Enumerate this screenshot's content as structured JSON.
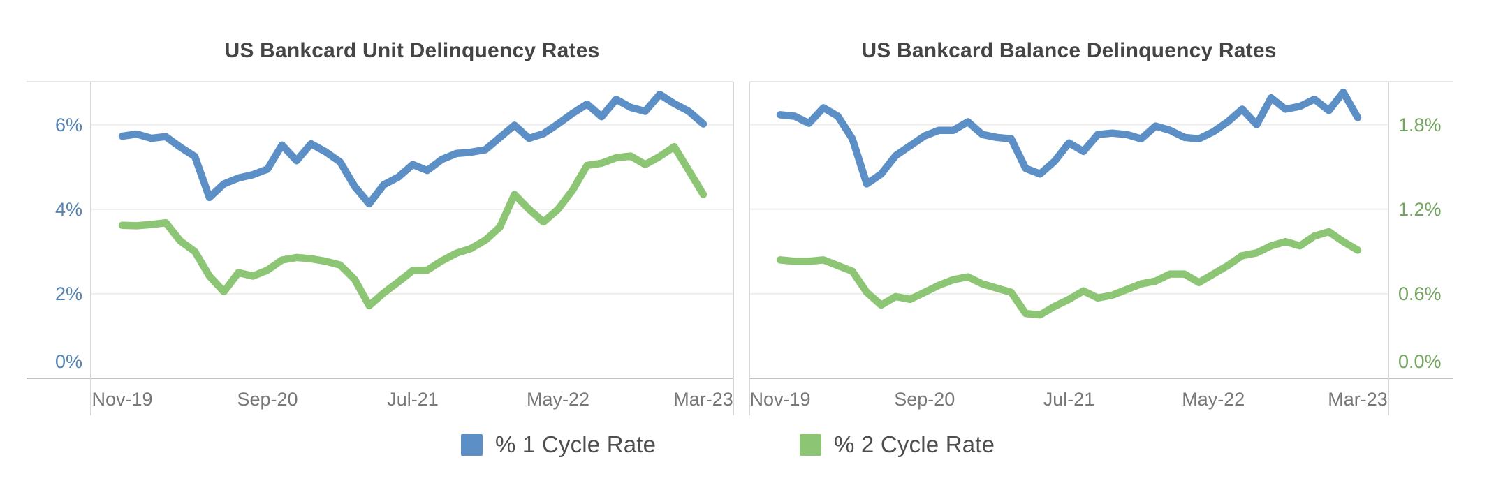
{
  "chart_data": [
    {
      "type": "line",
      "title": "US Bankcard Unit Delinquency Rates",
      "xlabel": "",
      "ylabel": "",
      "ylim": [
        0,
        7.02
      ],
      "grid": true,
      "legend_position": "bottom-shared",
      "axis_color": "#5584B4",
      "y_axis_side": "left",
      "y_ticks": [
        {
          "value": 0,
          "label": "0%"
        },
        {
          "value": 2,
          "label": "2%"
        },
        {
          "value": 4,
          "label": "4%"
        },
        {
          "value": 6,
          "label": "6%"
        }
      ],
      "x_ticks": [
        {
          "index": 0,
          "label": "Nov-19"
        },
        {
          "index": 10,
          "label": "Sep-20"
        },
        {
          "index": 20,
          "label": "Jul-21"
        },
        {
          "index": 30,
          "label": "May-22"
        },
        {
          "index": 40,
          "label": "Mar-23"
        }
      ],
      "categories": [
        "Nov-19",
        "Dec-19",
        "Jan-20",
        "Feb-20",
        "Mar-20",
        "Apr-20",
        "May-20",
        "Jun-20",
        "Jul-20",
        "Aug-20",
        "Sep-20",
        "Oct-20",
        "Nov-20",
        "Dec-20",
        "Jan-21",
        "Feb-21",
        "Mar-21",
        "Apr-21",
        "May-21",
        "Jun-21",
        "Jul-21",
        "Aug-21",
        "Sep-21",
        "Oct-21",
        "Nov-21",
        "Dec-21",
        "Jan-22",
        "Feb-22",
        "Mar-22",
        "Apr-22",
        "May-22",
        "Jun-22",
        "Jul-22",
        "Aug-22",
        "Sep-22",
        "Oct-22",
        "Nov-22",
        "Dec-22",
        "Jan-23",
        "Feb-23",
        "Mar-23"
      ],
      "series": [
        {
          "name": "% 1 Cycle Rate",
          "color": "#5B8FC5",
          "values": [
            5.73,
            5.78,
            5.68,
            5.72,
            5.47,
            5.25,
            4.28,
            4.6,
            4.74,
            4.82,
            4.95,
            5.52,
            5.15,
            5.55,
            5.36,
            5.12,
            4.54,
            4.13,
            4.58,
            4.76,
            5.06,
            4.92,
            5.18,
            5.32,
            5.35,
            5.41,
            5.7,
            5.99,
            5.68,
            5.79,
            6.02,
            6.27,
            6.49,
            6.19,
            6.6,
            6.41,
            6.32,
            6.72,
            6.5,
            6.32,
            6.02
          ]
        },
        {
          "name": "% 2 Cycle Rate",
          "color": "#8CC674",
          "values": [
            3.62,
            3.61,
            3.64,
            3.68,
            3.25,
            3.0,
            2.42,
            2.05,
            2.5,
            2.42,
            2.56,
            2.8,
            2.86,
            2.83,
            2.77,
            2.68,
            2.34,
            1.72,
            2.02,
            2.28,
            2.55,
            2.56,
            2.78,
            2.96,
            3.07,
            3.27,
            3.58,
            4.35,
            4.0,
            3.7,
            4.0,
            4.45,
            5.04,
            5.09,
            5.22,
            5.26,
            5.06,
            5.25,
            5.48,
            4.92,
            4.35
          ]
        }
      ]
    },
    {
      "type": "line",
      "title": "US Bankcard Balance Delinquency Rates",
      "xlabel": "",
      "ylabel": "",
      "ylim": [
        0,
        2.105
      ],
      "grid": true,
      "legend_position": "bottom-shared",
      "axis_color": "#73A560",
      "y_axis_side": "right",
      "y_ticks": [
        {
          "value": 0.0,
          "label": "0.0%"
        },
        {
          "value": 0.6,
          "label": "0.6%"
        },
        {
          "value": 1.2,
          "label": "1.2%"
        },
        {
          "value": 1.8,
          "label": "1.8%"
        }
      ],
      "x_ticks": [
        {
          "index": 0,
          "label": "Nov-19"
        },
        {
          "index": 10,
          "label": "Sep-20"
        },
        {
          "index": 20,
          "label": "Jul-21"
        },
        {
          "index": 30,
          "label": "May-22"
        },
        {
          "index": 40,
          "label": "Mar-23"
        }
      ],
      "categories": [
        "Nov-19",
        "Dec-19",
        "Jan-20",
        "Feb-20",
        "Mar-20",
        "Apr-20",
        "May-20",
        "Jun-20",
        "Jul-20",
        "Aug-20",
        "Sep-20",
        "Oct-20",
        "Nov-20",
        "Dec-20",
        "Jan-21",
        "Feb-21",
        "Mar-21",
        "Apr-21",
        "May-21",
        "Jun-21",
        "Jul-21",
        "Aug-21",
        "Sep-21",
        "Oct-21",
        "Nov-21",
        "Dec-21",
        "Jan-22",
        "Feb-22",
        "Mar-22",
        "Apr-22",
        "May-22",
        "Jun-22",
        "Jul-22",
        "Aug-22",
        "Sep-22",
        "Oct-22",
        "Nov-22",
        "Dec-22",
        "Jan-23",
        "Feb-23",
        "Mar-23"
      ],
      "series": [
        {
          "name": "% 1 Cycle Rate",
          "color": "#5B8FC5",
          "values": [
            1.87,
            1.86,
            1.81,
            1.92,
            1.86,
            1.7,
            1.38,
            1.45,
            1.58,
            1.65,
            1.72,
            1.76,
            1.76,
            1.82,
            1.73,
            1.71,
            1.7,
            1.49,
            1.45,
            1.54,
            1.67,
            1.61,
            1.73,
            1.74,
            1.73,
            1.7,
            1.79,
            1.76,
            1.71,
            1.7,
            1.75,
            1.82,
            1.91,
            1.8,
            1.99,
            1.91,
            1.93,
            1.98,
            1.9,
            2.03,
            1.85
          ]
        },
        {
          "name": "% 2 Cycle Rate",
          "color": "#8CC674",
          "values": [
            0.84,
            0.83,
            0.83,
            0.84,
            0.8,
            0.76,
            0.61,
            0.52,
            0.58,
            0.56,
            0.61,
            0.66,
            0.7,
            0.72,
            0.67,
            0.64,
            0.61,
            0.46,
            0.45,
            0.51,
            0.56,
            0.62,
            0.57,
            0.59,
            0.63,
            0.67,
            0.69,
            0.74,
            0.74,
            0.68,
            0.74,
            0.8,
            0.87,
            0.89,
            0.94,
            0.97,
            0.94,
            1.01,
            1.04,
            0.97,
            0.91
          ]
        }
      ]
    }
  ],
  "legend": {
    "items": [
      {
        "label": "% 1 Cycle Rate",
        "color": "#5B8FC5"
      },
      {
        "label": "% 2 Cycle Rate",
        "color": "#8CC674"
      }
    ]
  }
}
